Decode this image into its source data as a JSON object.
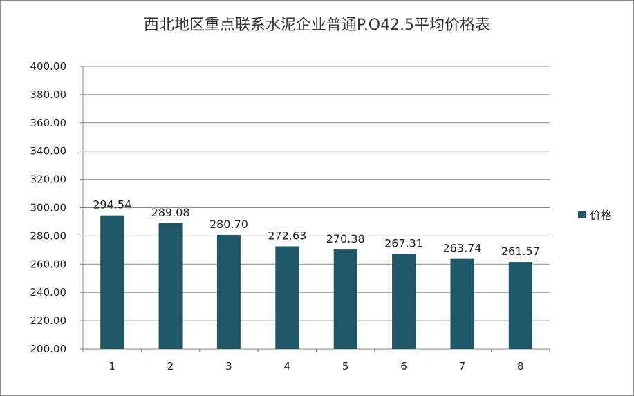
{
  "chart_data": {
    "type": "bar",
    "title": "西北地区重点联系水泥企业普通P.O42.5平均价格表",
    "categories": [
      "1",
      "2",
      "3",
      "4",
      "5",
      "6",
      "7",
      "8"
    ],
    "series": [
      {
        "name": "价格",
        "values": [
          294.54,
          289.08,
          280.7,
          272.63,
          270.38,
          267.31,
          263.74,
          261.57
        ]
      }
    ],
    "value_labels": [
      "294.54",
      "289.08",
      "280.70",
      "272.63",
      "270.38",
      "267.31",
      "263.74",
      "261.57"
    ],
    "ylim": [
      200,
      400
    ],
    "ytick_labels": [
      "200.00",
      "220.00",
      "240.00",
      "260.00",
      "280.00",
      "300.00",
      "320.00",
      "340.00",
      "360.00",
      "380.00",
      "400.00"
    ],
    "grid": true,
    "legend_position": "right",
    "bar_color": "#1f5767"
  }
}
